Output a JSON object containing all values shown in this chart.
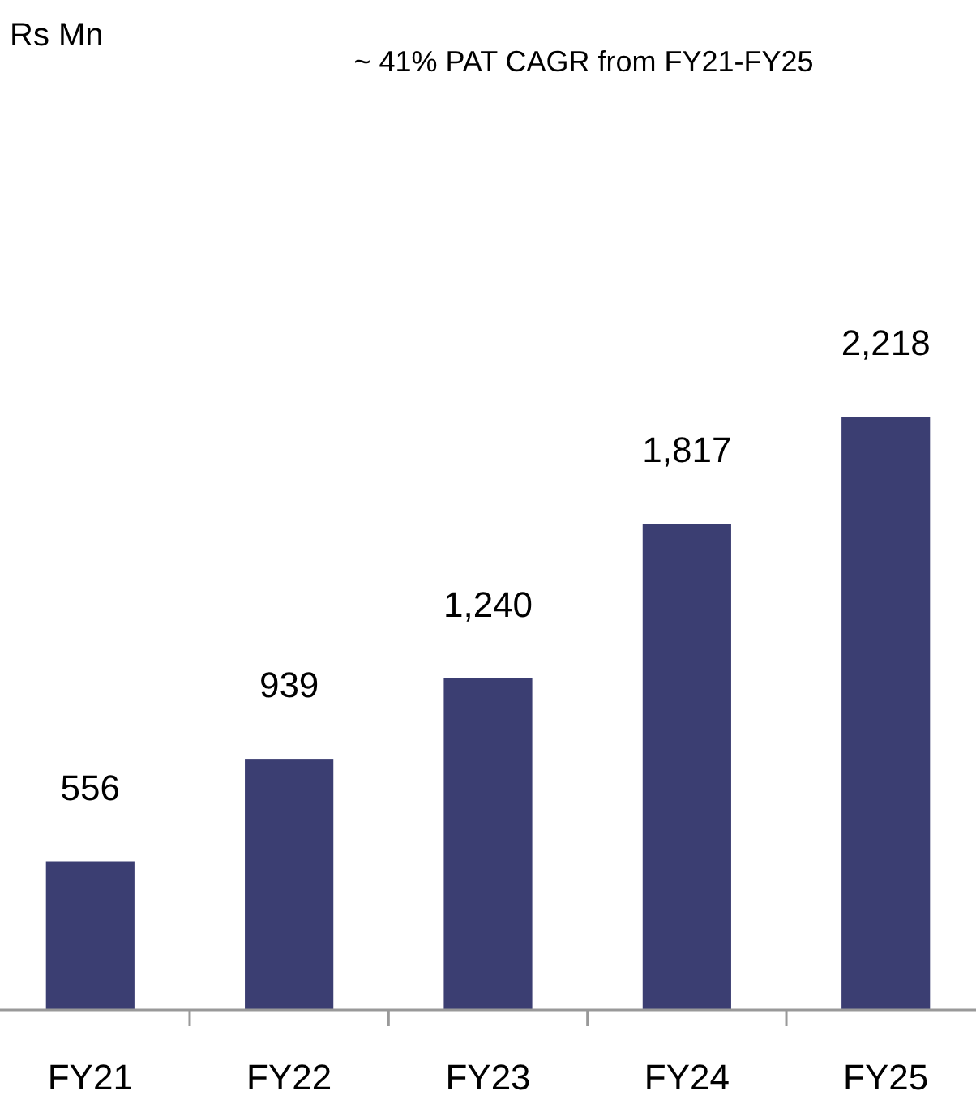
{
  "chart_data": {
    "type": "bar",
    "title": "~ 41% PAT CAGR from FY21-FY25",
    "annotations": [
      "Rs Mn"
    ],
    "categories": [
      "FY21",
      "FY22",
      "FY23",
      "FY24",
      "FY25"
    ],
    "values": [
      556,
      939,
      1240,
      1817,
      2218
    ],
    "value_labels": [
      "556",
      "939",
      "1,240",
      "1,817",
      "2,218"
    ],
    "color": "#3b3e72"
  }
}
